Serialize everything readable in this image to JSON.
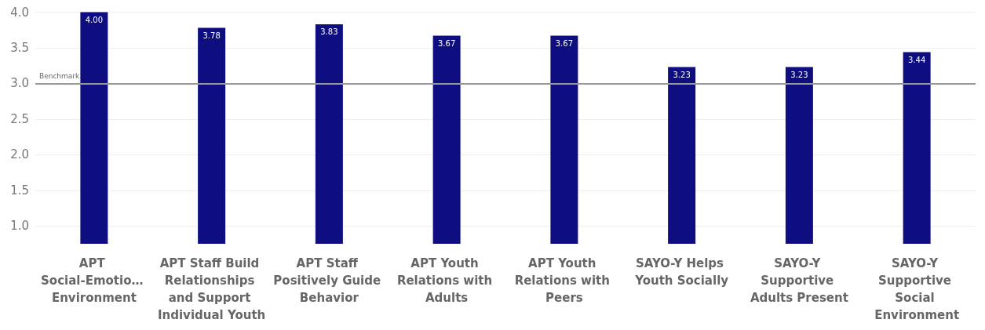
{
  "chart_data": {
    "type": "bar",
    "categories": [
      "APT Social-Emotio… Environment",
      "APT Staff Build Relationships and Support Individual Youth",
      "APT Staff Positively Guide Behavior",
      "APT Youth Relations with Adults",
      "APT Youth Relations with Peers",
      "SAYO-Y Helps Youth Socially",
      "SAYO-Y Supportive Adults Present",
      "SAYO-Y Supportive Social Environment"
    ],
    "values": [
      4.0,
      3.78,
      3.83,
      3.67,
      3.67,
      3.23,
      3.23,
      3.44
    ],
    "color": "#0e0e80",
    "ylim": [
      0.75,
      4
    ],
    "yticks": [
      {
        "value": 1,
        "label": "1.0"
      },
      {
        "value": 1.5,
        "label": "1.5"
      },
      {
        "value": 2,
        "label": "2.0"
      },
      {
        "value": 2.5,
        "label": "2.5"
      },
      {
        "value": 3,
        "label": "3.0"
      },
      {
        "value": 3.5,
        "label": "3.5"
      },
      {
        "value": 4,
        "label": "4.0"
      }
    ],
    "grid": "y",
    "value_labels": [
      "4.00",
      "3.78",
      "3.83",
      "3.67",
      "3.67",
      "3.23",
      "3.23",
      "3.44"
    ],
    "ref_lines": [
      {
        "axis": "y",
        "value": 3,
        "label": "Benchmark",
        "color": "#999999"
      }
    ]
  }
}
